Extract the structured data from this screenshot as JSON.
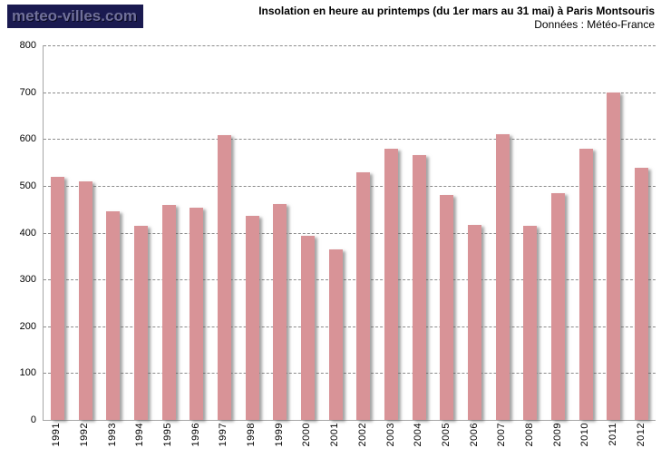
{
  "logo": {
    "text": "meteo-villes.com",
    "bg_color": "#1a1a50",
    "text_color": "#70709a"
  },
  "header": {
    "title": "Insolation en heure au printemps (du 1er mars au 31 mai) à Paris Montsouris",
    "subtitle": "Données : Météo-France"
  },
  "chart_data": {
    "type": "bar",
    "title": "Insolation en heure au printemps (du 1er mars au 31 mai) à Paris Montsouris",
    "source": "Données : Météo-France",
    "categories": [
      "1991",
      "1992",
      "1993",
      "1994",
      "1995",
      "1996",
      "1997",
      "1998",
      "1999",
      "2000",
      "2001",
      "2002",
      "2003",
      "2004",
      "2005",
      "2006",
      "2007",
      "2008",
      "2009",
      "2010",
      "2011",
      "2012"
    ],
    "values": [
      520,
      510,
      445,
      415,
      460,
      453,
      608,
      436,
      461,
      394,
      365,
      528,
      579,
      566,
      480,
      416,
      610,
      414,
      485,
      579,
      700,
      538
    ],
    "xlabel": "",
    "ylabel": "",
    "ylim": [
      0,
      800
    ],
    "ytick_step": 100,
    "yticks": [
      "800",
      "700",
      "600",
      "500",
      "400",
      "300",
      "200",
      "100",
      "0"
    ],
    "grid": true,
    "grid_style": "dashed",
    "legend_position": "none",
    "bar_color": "#d89397",
    "axis_color": "#a6a6a6",
    "gridline_color": "#8c8c8c"
  }
}
